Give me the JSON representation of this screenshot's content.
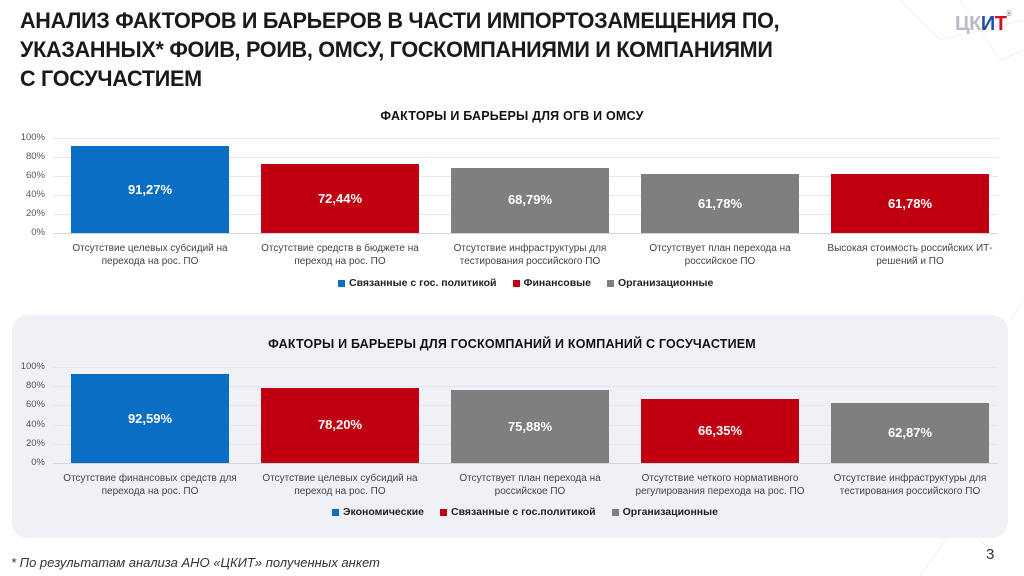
{
  "header": {
    "title_lines": [
      "АНАЛИЗ ФАКТОРОВ И БАРЬЕРОВ В ЧАСТИ ИМПОРТОЗАМЕЩЕНИЯ ПО,",
      "УКАЗАННЫХ* ФОИВ, РОИВ, ОМСУ, ГОСКОМПАНИЯМИ И КОМПАНИЯМИ",
      "С ГОСУЧАСТИЕМ"
    ],
    "logo": {
      "part1": "ЦК",
      "part2": "И",
      "part3": "Т",
      "reg": "®"
    }
  },
  "colors": {
    "blue": "#0a6fc4",
    "red": "#c00010",
    "gray": "#7f7f7f",
    "panel_bg": "#f0f1f6"
  },
  "chart_data": [
    {
      "type": "bar",
      "title": "ФАКТОРЫ И БАРЬЕРЫ ДЛЯ ОГВ И ОМСУ",
      "categories": [
        "Отсутствие целевых субсидий на перехода на рос. ПО",
        "Отсутствие средств в бюджете на переход на рос. ПО",
        "Отсутствие инфраструктуры для тестирования российского ПО",
        "Отсутствует план перехода на российское ПО",
        "Высокая стоимость российских ИТ-решений и ПО"
      ],
      "category_lines": [
        [
          "Отсутствие целевых субсидий на",
          "перехода на рос. ПО"
        ],
        [
          "Отсутствие средств в бюджете на",
          "переход на рос. ПО"
        ],
        [
          "Отсутствие инфраструктуры для",
          "тестирования российского ПО"
        ],
        [
          "Отсутствует план перехода на",
          "российское ПО"
        ],
        [
          "Высокая стоимость российских ИТ-",
          "решений и ПО"
        ]
      ],
      "values": [
        91.27,
        72.44,
        68.79,
        61.78,
        61.78
      ],
      "value_labels": [
        "91,27%",
        "72,44%",
        "68,79%",
        "61,78%",
        "61,78%"
      ],
      "bar_groups": [
        "Связанные с гос. политикой",
        "Финансовые",
        "Организационные",
        "Организационные",
        "Финансовые"
      ],
      "bar_colors": [
        "#0a6fc4",
        "#c00010",
        "#7f7f7f",
        "#7f7f7f",
        "#c00010"
      ],
      "legend": [
        {
          "label": "Связанные с гос. политикой",
          "color": "#0a6fc4"
        },
        {
          "label": "Финансовые",
          "color": "#c00010"
        },
        {
          "label": "Организационные",
          "color": "#7f7f7f"
        }
      ],
      "legend_position": "bottom",
      "xlabel": "",
      "ylabel": "",
      "ylim": [
        0,
        100
      ],
      "yticks": [
        "100%",
        "80%",
        "60%",
        "40%",
        "20%",
        "0%"
      ],
      "grid": true
    },
    {
      "type": "bar",
      "title": "ФАКТОРЫ И БАРЬЕРЫ ДЛЯ ГОСКОМПАНИЙ И КОМПАНИЙ С ГОСУЧАСТИЕМ",
      "categories": [
        "Отсутствие финансовых средств для перехода на рос. ПО",
        "Отсутствие целевых субсидий на переход на рос. ПО",
        "Отсутствует план перехода на российское ПО",
        "Отсутствие четкого нормативного регулирования перехода на рос. ПО",
        "Отсутствие инфраструктуры для тестирования российского ПО"
      ],
      "category_lines": [
        [
          "Отсутствие финансовых средств для",
          "перехода на рос. ПО"
        ],
        [
          "Отсутствие целевых субсидий на",
          "переход на рос. ПО"
        ],
        [
          "Отсутствует план перехода на",
          "российское ПО"
        ],
        [
          "Отсутствие четкого нормативного",
          "регулирования перехода на рос. ПО"
        ],
        [
          "Отсутствие инфраструктуры для",
          "тестирования российского ПО"
        ]
      ],
      "values": [
        92.59,
        78.2,
        75.88,
        66.35,
        62.87
      ],
      "value_labels": [
        "92,59%",
        "78,20%",
        "75,88%",
        "66,35%",
        "62,87%"
      ],
      "bar_groups": [
        "Экономические",
        "Связанные с гос.политикой",
        "Организационные",
        "Связанные с гос.политикой",
        "Организационные"
      ],
      "bar_colors": [
        "#0a6fc4",
        "#c00010",
        "#7f7f7f",
        "#c00010",
        "#7f7f7f"
      ],
      "legend": [
        {
          "label": "Экономические",
          "color": "#0a6fc4"
        },
        {
          "label": "Связанные с гос.политикой",
          "color": "#c00010"
        },
        {
          "label": "Организационные",
          "color": "#7f7f7f"
        }
      ],
      "legend_position": "bottom",
      "xlabel": "",
      "ylabel": "",
      "ylim": [
        0,
        100
      ],
      "yticks": [
        "100%",
        "80%",
        "60%",
        "40%",
        "20%",
        "0%"
      ],
      "grid": true
    }
  ],
  "footer": {
    "footnote": "* По результатам анализа АНО «ЦКИТ» полученных анкет",
    "page_number": "3"
  }
}
